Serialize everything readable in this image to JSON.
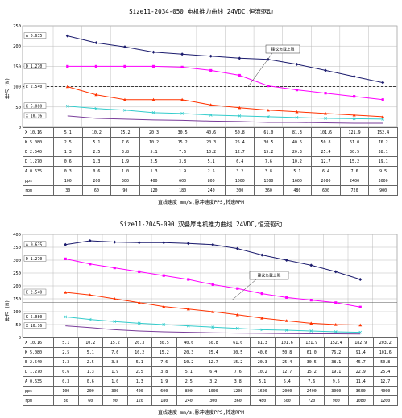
{
  "chart_data": [
    {
      "type": "line",
      "title": "Size11-2034-050 电机推力曲线 24VDC,恒流驱动",
      "xlabel": "直线速度 mm/s,脉冲速度PPS,转速RPM",
      "ylabel": "推力 (N)",
      "ylim": [
        0,
        250
      ],
      "yticks": [
        "0",
        "50",
        "100",
        "150",
        "200",
        "250"
      ],
      "grid": true,
      "annotation": "建议负载上限",
      "reference_line": 100,
      "series": [
        {
          "name": "A 0.635",
          "color": "#1c1c6e",
          "marker": "diamond",
          "values": [
            225,
            208,
            198,
            185,
            180,
            175,
            170,
            167,
            155,
            140,
            125,
            110
          ]
        },
        {
          "name": "D 1.270",
          "color": "#ff00ff",
          "marker": "square",
          "values": [
            150,
            150,
            150,
            150,
            148,
            140,
            128,
            102,
            92,
            84,
            76,
            68
          ]
        },
        {
          "name": "E 2.540",
          "color": "#ff3300",
          "marker": "triangle",
          "values": [
            100,
            80,
            68,
            68,
            68,
            55,
            48,
            42,
            38,
            34,
            30,
            26
          ]
        },
        {
          "name": "K 5.080",
          "color": "#33cccc",
          "marker": "x",
          "values": [
            52,
            46,
            42,
            36,
            34,
            30,
            28,
            26,
            24,
            22,
            21,
            20
          ]
        },
        {
          "name": "X 10.16",
          "color": "#7a3d9a",
          "marker": "none",
          "values": [
            28,
            22,
            20,
            18,
            17,
            15,
            14,
            12,
            12,
            11,
            10,
            10
          ]
        }
      ],
      "table": {
        "rows": [
          {
            "label": "X 10.16",
            "values": [
              "5.1",
              "10.2",
              "15.2",
              "20.3",
              "30.5",
              "40.6",
              "50.8",
              "61.0",
              "81.3",
              "101.6",
              "121.9",
              "152.4"
            ]
          },
          {
            "label": "K 5.080",
            "values": [
              "2.5",
              "5.1",
              "7.6",
              "10.2",
              "15.2",
              "20.3",
              "25.4",
              "30.5",
              "40.6",
              "50.8",
              "61.0",
              "76.2"
            ]
          },
          {
            "label": "E 2.540",
            "values": [
              "1.3",
              "2.5",
              "3.8",
              "5.1",
              "7.6",
              "10.2",
              "12.7",
              "15.2",
              "20.3",
              "25.4",
              "30.5",
              "38.1"
            ]
          },
          {
            "label": "D 1.270",
            "values": [
              "0.6",
              "1.3",
              "1.9",
              "2.5",
              "3.8",
              "5.1",
              "6.4",
              "7.6",
              "10.2",
              "12.7",
              "15.2",
              "19.1"
            ]
          },
          {
            "label": "A 0.635",
            "values": [
              "0.3",
              "0.6",
              "1.0",
              "1.3",
              "1.9",
              "2.5",
              "3.2",
              "3.8",
              "5.1",
              "6.4",
              "7.6",
              "9.5"
            ]
          },
          {
            "label": "pps",
            "values": [
              "100",
              "200",
              "300",
              "400",
              "600",
              "800",
              "1000",
              "1200",
              "1600",
              "2000",
              "2400",
              "3000"
            ]
          },
          {
            "label": "rpm",
            "values": [
              "30",
              "60",
              "90",
              "120",
              "180",
              "240",
              "300",
              "360",
              "480",
              "600",
              "720",
              "900"
            ]
          }
        ]
      }
    },
    {
      "type": "line",
      "title": "Size11-2045-090 双叠厚电机推力曲线 24VDC,恒流驱动",
      "xlabel": "直线速度 mm/s,脉冲速度PPS,转速RPM",
      "ylabel": "推力 (N)",
      "ylim": [
        0,
        400
      ],
      "yticks": [
        "0",
        "50",
        "100",
        "150",
        "200",
        "250",
        "300",
        "350",
        "400"
      ],
      "grid": true,
      "annotation": "建议负载上限",
      "reference_line": 145,
      "series": [
        {
          "name": "A 0.635",
          "color": "#1c1c6e",
          "marker": "diamond",
          "values": [
            360,
            375,
            370,
            368,
            368,
            365,
            360,
            345,
            320,
            300,
            280,
            255,
            225
          ]
        },
        {
          "name": "D 1.270",
          "color": "#ff00ff",
          "marker": "square",
          "values": [
            305,
            285,
            270,
            255,
            240,
            225,
            205,
            190,
            170,
            155,
            145,
            135,
            118
          ]
        },
        {
          "name": "E 2.540",
          "color": "#ff3300",
          "marker": "triangle",
          "values": [
            175,
            165,
            150,
            135,
            120,
            110,
            100,
            88,
            75,
            65,
            55,
            50,
            48
          ]
        },
        {
          "name": "K 5.080",
          "color": "#33cccc",
          "marker": "x",
          "values": [
            80,
            70,
            62,
            55,
            50,
            45,
            40,
            35,
            30,
            28,
            25,
            22,
            20
          ]
        },
        {
          "name": "X 10.16",
          "color": "#7a3d9a",
          "marker": "none",
          "values": [
            45,
            38,
            30,
            25,
            22,
            20,
            18,
            17,
            16,
            15,
            14,
            14,
            13
          ]
        }
      ],
      "table": {
        "rows": [
          {
            "label": "X 10.16",
            "values": [
              "5.1",
              "10.2",
              "15.2",
              "20.3",
              "30.5",
              "40.6",
              "50.8",
              "61.0",
              "81.3",
              "101.6",
              "121.9",
              "152.4",
              "182.9",
              "203.2"
            ]
          },
          {
            "label": "K 5.080",
            "values": [
              "2.5",
              "5.1",
              "7.6",
              "10.2",
              "15.2",
              "20.3",
              "25.4",
              "30.5",
              "40.6",
              "50.8",
              "61.0",
              "76.2",
              "91.4",
              "101.6"
            ]
          },
          {
            "label": "E 2.540",
            "values": [
              "1.3",
              "2.5",
              "3.8",
              "5.1",
              "7.6",
              "10.2",
              "12.7",
              "15.2",
              "20.3",
              "25.4",
              "30.5",
              "38.1",
              "45.7",
              "50.8"
            ]
          },
          {
            "label": "D 1.270",
            "values": [
              "0.6",
              "1.3",
              "1.9",
              "2.5",
              "3.8",
              "5.1",
              "6.4",
              "7.6",
              "10.2",
              "12.7",
              "15.2",
              "19.1",
              "22.9",
              "25.4"
            ]
          },
          {
            "label": "A 0.635",
            "values": [
              "0.3",
              "0.6",
              "1.0",
              "1.3",
              "1.9",
              "2.5",
              "3.2",
              "3.8",
              "5.1",
              "6.4",
              "7.6",
              "9.5",
              "11.4",
              "12.7"
            ]
          },
          {
            "label": "pps",
            "values": [
              "100",
              "200",
              "300",
              "400",
              "600",
              "800",
              "1000",
              "1200",
              "1600",
              "2000",
              "2400",
              "3000",
              "3600",
              "4000"
            ]
          },
          {
            "label": "rpm",
            "values": [
              "30",
              "60",
              "90",
              "120",
              "180",
              "240",
              "300",
              "360",
              "480",
              "600",
              "720",
              "900",
              "1080",
              "1200"
            ]
          }
        ]
      }
    }
  ]
}
